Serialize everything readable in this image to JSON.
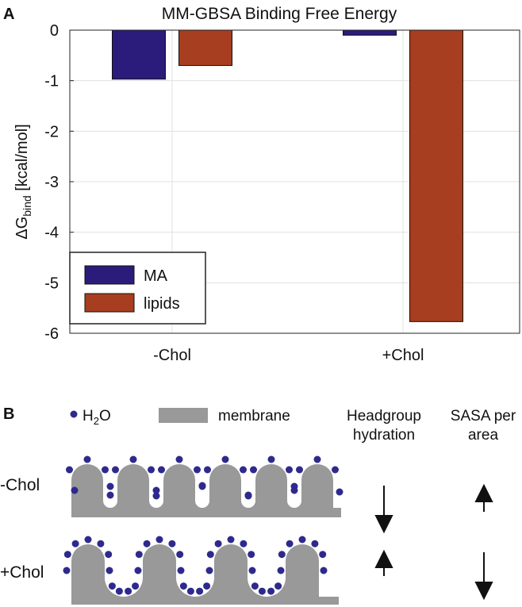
{
  "chart_data": {
    "type": "bar",
    "panel_label": "A",
    "title": "MM-GBSA Binding Free Energy",
    "ylabel": {
      "main": "ΔG",
      "sub": "bind",
      "unit": " [kcal/mol]"
    },
    "categories": [
      "-Chol",
      "+Chol"
    ],
    "series": [
      {
        "name": "MA",
        "color": "#2b1b7a",
        "values": [
          -0.97,
          -0.1
        ]
      },
      {
        "name": "lipids",
        "color": "#a63e1f",
        "values": [
          -0.7,
          -5.77
        ]
      }
    ],
    "ylim": [
      -6,
      0
    ],
    "yticks": [
      0,
      -1,
      -2,
      -3,
      -4,
      -5,
      -6
    ],
    "grid": true,
    "legend": "lower left"
  },
  "diagram": {
    "panel_label": "B",
    "water": {
      "main": "H",
      "sub": "2",
      "rest": "O"
    },
    "membrane": "membrane",
    "headers": [
      [
        "Headgroup",
        "hydration"
      ],
      [
        "SASA per",
        "area"
      ]
    ],
    "rows": [
      "-Chol",
      "+Chol"
    ]
  }
}
